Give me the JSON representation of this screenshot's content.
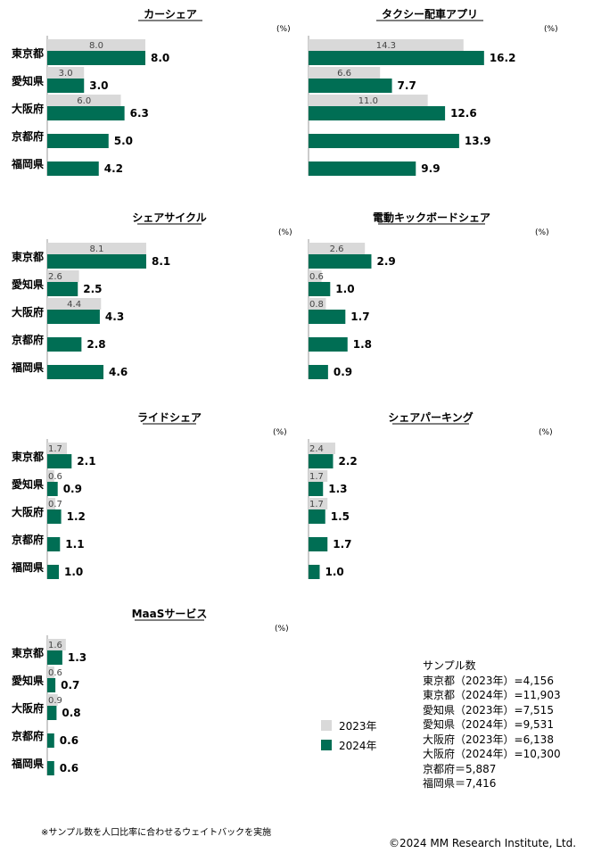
{
  "chart_data": [
    {
      "type": "bar",
      "title": "カーシェア",
      "unit": "(%)",
      "categories": [
        "東京都",
        "愛知県",
        "大阪府",
        "京都府",
        "福岡県"
      ],
      "series": [
        {
          "name": "2023年",
          "values": [
            8.0,
            3.0,
            6.0,
            null,
            null
          ]
        },
        {
          "name": "2024年",
          "values": [
            8.0,
            3.0,
            6.3,
            5.0,
            4.2
          ]
        }
      ]
    },
    {
      "type": "bar",
      "title": "タクシー配車アプリ",
      "unit": "(%)",
      "categories": [
        "東京都",
        "愛知県",
        "大阪府",
        "京都府",
        "福岡県"
      ],
      "series": [
        {
          "name": "2023年",
          "values": [
            14.3,
            6.6,
            11.0,
            null,
            null
          ]
        },
        {
          "name": "2024年",
          "values": [
            16.2,
            7.7,
            12.6,
            13.9,
            9.9
          ]
        }
      ]
    },
    {
      "type": "bar",
      "title": "シェアサイクル",
      "unit": "(%)",
      "categories": [
        "東京都",
        "愛知県",
        "大阪府",
        "京都府",
        "福岡県"
      ],
      "series": [
        {
          "name": "2023年",
          "values": [
            8.1,
            2.6,
            4.4,
            null,
            null
          ]
        },
        {
          "name": "2024年",
          "values": [
            8.1,
            2.5,
            4.3,
            2.8,
            4.6
          ]
        }
      ]
    },
    {
      "type": "bar",
      "title": "電動キックボードシェア",
      "unit": "(%)",
      "categories": [
        "東京都",
        "愛知県",
        "大阪府",
        "京都府",
        "福岡県"
      ],
      "series": [
        {
          "name": "2023年",
          "values": [
            2.6,
            0.6,
            0.8,
            null,
            null
          ]
        },
        {
          "name": "2024年",
          "values": [
            2.9,
            1.0,
            1.7,
            1.8,
            0.9
          ]
        }
      ]
    },
    {
      "type": "bar",
      "title": "ライドシェア",
      "unit": "(%)",
      "categories": [
        "東京都",
        "愛知県",
        "大阪府",
        "京都府",
        "福岡県"
      ],
      "series": [
        {
          "name": "2023年",
          "values": [
            1.7,
            0.6,
            0.7,
            null,
            null
          ]
        },
        {
          "name": "2024年",
          "values": [
            2.1,
            0.9,
            1.2,
            1.1,
            1.0
          ]
        }
      ]
    },
    {
      "type": "bar",
      "title": "シェアパーキング",
      "unit": "(%)",
      "categories": [
        "東京都",
        "愛知県",
        "大阪府",
        "京都府",
        "福岡県"
      ],
      "series": [
        {
          "name": "2023年",
          "values": [
            2.4,
            1.7,
            1.7,
            null,
            null
          ]
        },
        {
          "name": "2024年",
          "values": [
            2.2,
            1.3,
            1.5,
            1.7,
            1.0
          ]
        }
      ]
    },
    {
      "type": "bar",
      "title": "MaaSサービス",
      "unit": "(%)",
      "categories": [
        "東京都",
        "愛知県",
        "大阪府",
        "京都府",
        "福岡県"
      ],
      "series": [
        {
          "name": "2023年",
          "values": [
            1.6,
            0.6,
            0.9,
            null,
            null
          ]
        },
        {
          "name": "2024年",
          "values": [
            1.3,
            0.7,
            0.8,
            0.6,
            0.6
          ]
        }
      ]
    }
  ],
  "legend": [
    {
      "label": "2023年",
      "color": "#d9d9d9"
    },
    {
      "label": "2024年",
      "color": "#006e54"
    }
  ],
  "sample": {
    "title": "サンプル数",
    "lines": [
      "東京都（2023年）=4,156",
      "東京都（2024年）=11,903",
      "愛知県（2023年）=7,515",
      "愛知県（2024年）=9,531",
      "大阪府（2023年）=6,138",
      "大阪府（2024年）=10,300",
      "京都府＝5,887",
      "福岡県＝7,416"
    ]
  },
  "footnote": "※サンプル数を人口比率に合わせるウェイトバックを実施",
  "copyright": "©2024 MM Research Institute, Ltd."
}
